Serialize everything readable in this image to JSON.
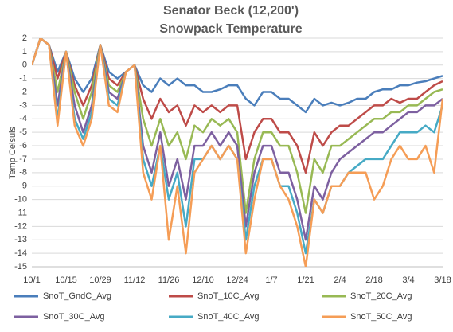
{
  "chart_data": {
    "type": "line",
    "title": "Senator Beck (12,200')",
    "subtitle": "Snowpack Temperature",
    "y_label": "Temp Celsuis",
    "categories": [
      "10/1",
      null,
      null,
      null,
      "10/15",
      null,
      null,
      null,
      "10/29",
      null,
      null,
      null,
      "11/12",
      null,
      null,
      null,
      "11/26",
      null,
      null,
      null,
      "12/10",
      null,
      null,
      null,
      "12/24",
      null,
      null,
      null,
      "1/7",
      null,
      null,
      null,
      "1/21",
      null,
      null,
      null,
      "2/4",
      null,
      null,
      null,
      "2/18",
      null,
      null,
      null,
      "3/4",
      null,
      null,
      null,
      "3/18"
    ],
    "ylim": [
      -15,
      2
    ],
    "yticks": [
      -15,
      -14,
      -13,
      -12,
      -11,
      -10,
      -9,
      -8,
      -7,
      -6,
      -5,
      -4,
      -3,
      -2,
      -1,
      0,
      1,
      2
    ],
    "grid": true,
    "legend": "bottom",
    "series": [
      {
        "name": "SnoT_GndC_Avg",
        "color": "#4a7ebb",
        "values": [
          0,
          2,
          1.5,
          -0.5,
          1,
          -1,
          -2,
          -1,
          1.5,
          -0.5,
          -1,
          -0.5,
          0,
          -1.5,
          -2,
          -1,
          -1.5,
          -1,
          -1.5,
          -1.5,
          -2,
          -2,
          -1.8,
          -1.5,
          -1.5,
          -2.5,
          -3,
          -2,
          -2,
          -2.5,
          -2.5,
          -3,
          -3.5,
          -2.5,
          -3,
          -2.8,
          -3,
          -2.8,
          -2.5,
          -2.5,
          -2,
          -1.8,
          -1.8,
          -1.5,
          -1.5,
          -1.3,
          -1.2,
          -1,
          -0.8
        ]
      },
      {
        "name": "SnoT_10C_Avg",
        "color": "#be4b48",
        "values": [
          0,
          2,
          1.5,
          -1,
          1,
          -1.5,
          -3,
          -1.5,
          1.5,
          -1,
          -1.5,
          -0.5,
          0,
          -2.5,
          -4,
          -2.5,
          -3.5,
          -3,
          -4.5,
          -3,
          -3.5,
          -3,
          -3.5,
          -3,
          -3,
          -7,
          -5,
          -4,
          -4,
          -5,
          -5,
          -6,
          -8,
          -5,
          -6,
          -5,
          -4.5,
          -4.5,
          -4,
          -3.5,
          -3,
          -3,
          -2.5,
          -2.8,
          -2.5,
          -2.5,
          -2,
          -1.5,
          -1.2
        ]
      },
      {
        "name": "SnoT_20C_Avg",
        "color": "#98b954",
        "values": [
          0,
          2,
          1.5,
          -2,
          1,
          -2,
          -4,
          -2,
          1.5,
          -1.5,
          -2,
          -0.5,
          0,
          -4,
          -6,
          -4,
          -6,
          -5,
          -7,
          -4.5,
          -5,
          -4,
          -4.5,
          -4,
          -5,
          -11,
          -7,
          -5,
          -5,
          -6,
          -6,
          -8,
          -11,
          -7,
          -8,
          -6,
          -6,
          -5.5,
          -5,
          -4.5,
          -4,
          -4,
          -3.5,
          -3.5,
          -3,
          -3,
          -2.5,
          -2,
          -1.8
        ]
      },
      {
        "name": "SnoT_30C_Avg",
        "color": "#7d60a0",
        "values": [
          0,
          2,
          1.5,
          -3,
          1,
          -3,
          -5,
          -3,
          1.5,
          -2,
          -2.5,
          -0.5,
          0,
          -6,
          -8,
          -5,
          -9,
          -7,
          -10,
          -6,
          -6,
          -5,
          -6,
          -5,
          -6,
          -12,
          -8,
          -6,
          -6,
          -8,
          -8,
          -10,
          -13,
          -9,
          -10,
          -8,
          -7,
          -6.5,
          -6,
          -5.5,
          -5,
          -5,
          -4.5,
          -4,
          -3.5,
          -3.5,
          -3,
          -3,
          -2.5
        ]
      },
      {
        "name": "SnoT_40C_Avg",
        "color": "#46aac5",
        "values": [
          0,
          2,
          1.5,
          -4,
          1,
          -4,
          -5.5,
          -3.5,
          1.5,
          -2.5,
          -3,
          -0.5,
          0,
          -7,
          -9,
          -6,
          -10,
          -8,
          -12,
          -7,
          -7,
          -6,
          -7,
          -6,
          -7,
          -13,
          -9,
          -7,
          -7,
          -9,
          -9,
          -11,
          -14,
          -10,
          -11,
          -9,
          -9,
          -8,
          -7.5,
          -7,
          -7,
          -7,
          -6,
          -5,
          -5,
          -5,
          -4.5,
          -5,
          -3
        ]
      },
      {
        "name": "SnoT_50C_Avg",
        "color": "#f59d56",
        "values": [
          0,
          2,
          1.5,
          -4.5,
          1,
          -4.5,
          -6,
          -4,
          1.5,
          -3,
          -3.5,
          -0.5,
          0,
          -8,
          -10,
          -6,
          -13,
          -9,
          -14,
          -8,
          -7,
          -6,
          -7,
          -6,
          -7,
          -14,
          -10,
          -7,
          -7,
          -9,
          -10,
          -12,
          -15,
          -10,
          -11,
          -9,
          -9,
          -8,
          -8,
          -8,
          -10,
          -9,
          -7,
          -6,
          -7,
          -7,
          -6,
          -8,
          -2.5
        ]
      }
    ]
  }
}
